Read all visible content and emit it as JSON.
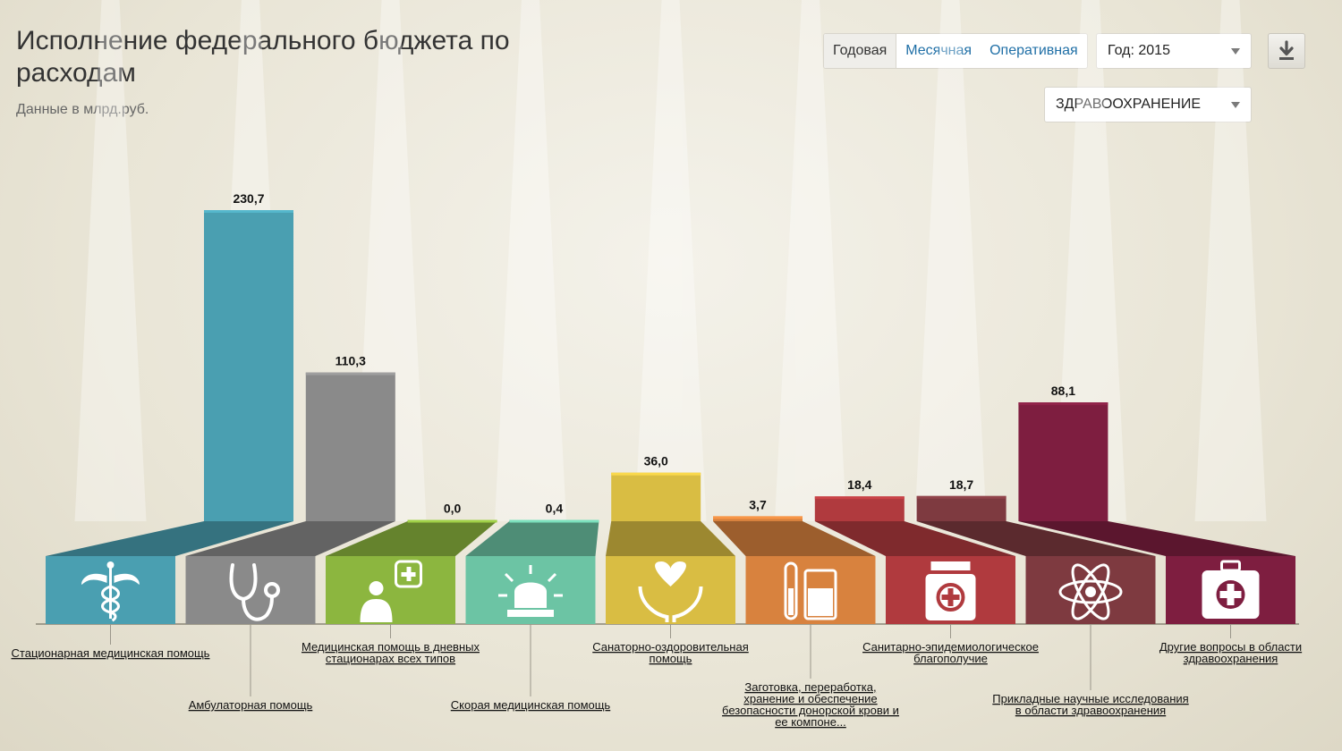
{
  "header": {
    "title": "Исполнение федерального бюджета по расходам",
    "subtitle": "Данные в млрд.руб."
  },
  "controls": {
    "tabs": [
      "Годовая",
      "Месячная",
      "Оперативная"
    ],
    "active_tab": "Годовая",
    "year_select": "Год: 2015",
    "section_select": "ЗДРАВООХРАНЕНИЕ",
    "download_icon": "download-icon"
  },
  "chart_data": {
    "type": "bar",
    "title": "Исполнение федерального бюджета по расходам",
    "unit": "млрд.руб.",
    "ylim": [
      0,
      240
    ],
    "categories": [
      "Стационарная медицинская помощь",
      "Амбулаторная помощь",
      "Медицинская помощь в дневных стационарах всех типов",
      "Скорая медицинская помощь",
      "Санаторно-оздоровительная помощь",
      "Заготовка, переработка, хранение и обеспечение безопасности донорской крови и ее компоне...",
      "Санитарно-эпидемиологическое благополучие",
      "Прикладные научные исследования в области здравоохранения",
      "Другие вопросы в области здравоохранения"
    ],
    "values": [
      230.7,
      110.3,
      0.0,
      0.4,
      36.0,
      3.7,
      18.4,
      18.7,
      88.1
    ],
    "value_labels": [
      "230,7",
      "110,3",
      "0,0",
      "0,4",
      "36,0",
      "3,7",
      "18,4",
      "18,7",
      "88,1"
    ],
    "colors": [
      "#4a9fb1",
      "#8a8a8a",
      "#8cb63f",
      "#6cc4a4",
      "#d9bd43",
      "#d8823e",
      "#b03a3e",
      "#7e3a40",
      "#7e1e40"
    ],
    "icons": [
      "caduceus-icon",
      "stethoscope-icon",
      "doctor-icon",
      "siren-icon",
      "heart-hands-icon",
      "test-tube-icon",
      "medicine-jar-icon",
      "atom-icon",
      "first-aid-kit-icon"
    ],
    "grid": false,
    "legend": "none"
  }
}
